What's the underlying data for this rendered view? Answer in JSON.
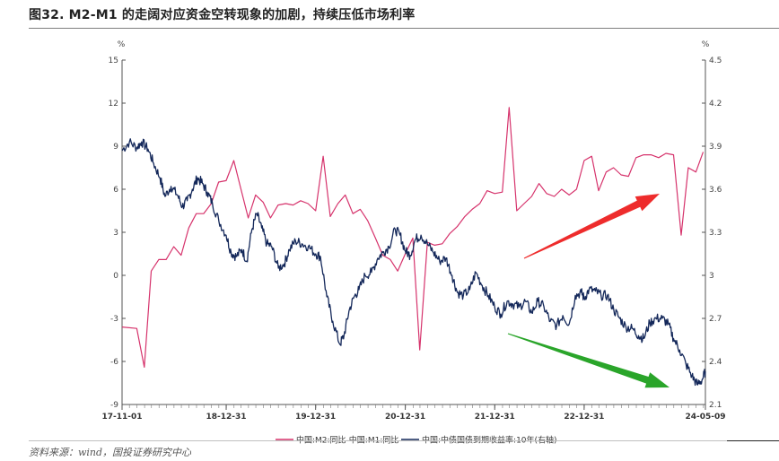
{
  "title": "图32. M2-M1 的走阔对应资金空转现象的加剧，持续压低市场利率",
  "source": "资料来源：wind，国投证券研究中心",
  "chart_data": {
    "type": "line",
    "left_unit": "%",
    "right_unit": "%",
    "left_ticks": [
      "15",
      "12",
      "9",
      "6",
      "3",
      "0",
      "-3",
      "-6",
      "-9"
    ],
    "right_ticks": [
      "4.5",
      "4.2",
      "3.9",
      "3.6",
      "3.3",
      "3",
      "2.7",
      "2.4",
      "2.1"
    ],
    "x_ticks": [
      "17-11-01",
      "18-12-31",
      "19-12-31",
      "20-12-31",
      "21-12-31",
      "22-12-31",
      "24-05-09"
    ],
    "xlim": [
      "2017-11-01",
      "2024-05-09"
    ],
    "ylim_left": [
      -9,
      15
    ],
    "ylim_right": [
      2.1,
      4.5
    ],
    "grid": false,
    "legend_position": "bottom",
    "arrow_colors": [
      "#ee2c2c",
      "#2aa52a"
    ],
    "series": [
      {
        "name": "中国:M2:同比-中国:M1:同比",
        "axis": "left",
        "color": "#d6336c",
        "points": [
          [
            "2017-11-01",
            -3.6
          ],
          [
            "2017-12-31",
            -3.7
          ],
          [
            "2018-01-31",
            -6.4
          ],
          [
            "2018-02-28",
            0.3
          ],
          [
            "2018-03-31",
            1.1
          ],
          [
            "2018-04-30",
            1.1
          ],
          [
            "2018-05-31",
            2.0
          ],
          [
            "2018-06-30",
            1.4
          ],
          [
            "2018-07-31",
            3.3
          ],
          [
            "2018-08-31",
            4.3
          ],
          [
            "2018-09-30",
            4.3
          ],
          [
            "2018-10-31",
            5.0
          ],
          [
            "2018-11-30",
            6.5
          ],
          [
            "2018-12-31",
            6.6
          ],
          [
            "2019-01-31",
            8.0
          ],
          [
            "2019-02-28",
            6.1
          ],
          [
            "2019-03-31",
            4.0
          ],
          [
            "2019-04-30",
            5.6
          ],
          [
            "2019-05-31",
            5.1
          ],
          [
            "2019-06-30",
            4.0
          ],
          [
            "2019-07-31",
            4.9
          ],
          [
            "2019-08-31",
            5.0
          ],
          [
            "2019-09-30",
            4.9
          ],
          [
            "2019-10-31",
            5.2
          ],
          [
            "2019-11-30",
            5.0
          ],
          [
            "2019-12-31",
            4.5
          ],
          [
            "2020-01-31",
            8.3
          ],
          [
            "2020-02-29",
            4.1
          ],
          [
            "2020-03-31",
            5.0
          ],
          [
            "2020-04-30",
            5.6
          ],
          [
            "2020-05-31",
            4.3
          ],
          [
            "2020-06-30",
            4.6
          ],
          [
            "2020-07-31",
            3.8
          ],
          [
            "2020-08-31",
            2.6
          ],
          [
            "2020-09-30",
            1.4
          ],
          [
            "2020-10-31",
            1.1
          ],
          [
            "2020-11-30",
            0.3
          ],
          [
            "2020-12-31",
            1.5
          ],
          [
            "2021-01-31",
            2.6
          ],
          [
            "2021-02-28",
            -5.2
          ],
          [
            "2021-03-31",
            2.3
          ],
          [
            "2021-04-30",
            2.1
          ],
          [
            "2021-05-31",
            2.2
          ],
          [
            "2021-06-30",
            2.9
          ],
          [
            "2021-07-31",
            3.4
          ],
          [
            "2021-08-31",
            4.1
          ],
          [
            "2021-09-30",
            4.6
          ],
          [
            "2021-10-31",
            5.0
          ],
          [
            "2021-11-30",
            5.9
          ],
          [
            "2021-12-31",
            5.7
          ],
          [
            "2022-01-31",
            5.8
          ],
          [
            "2022-02-28",
            11.7
          ],
          [
            "2022-03-31",
            4.5
          ],
          [
            "2022-04-30",
            5.0
          ],
          [
            "2022-05-31",
            5.5
          ],
          [
            "2022-06-30",
            6.4
          ],
          [
            "2022-07-31",
            5.7
          ],
          [
            "2022-08-31",
            5.5
          ],
          [
            "2022-09-30",
            6.0
          ],
          [
            "2022-10-31",
            5.6
          ],
          [
            "2022-11-30",
            6.0
          ],
          [
            "2022-12-31",
            8.0
          ],
          [
            "2023-01-31",
            8.3
          ],
          [
            "2023-02-28",
            5.9
          ],
          [
            "2023-03-31",
            7.2
          ],
          [
            "2023-04-30",
            7.5
          ],
          [
            "2023-05-31",
            7.0
          ],
          [
            "2023-06-30",
            6.9
          ],
          [
            "2023-07-31",
            8.2
          ],
          [
            "2023-08-31",
            8.4
          ],
          [
            "2023-09-30",
            8.4
          ],
          [
            "2023-10-31",
            8.2
          ],
          [
            "2023-11-30",
            8.5
          ],
          [
            "2023-12-31",
            8.4
          ],
          [
            "2024-01-31",
            2.8
          ],
          [
            "2024-02-29",
            7.5
          ],
          [
            "2024-03-31",
            7.2
          ],
          [
            "2024-04-30",
            8.6
          ]
        ]
      },
      {
        "name": "中国:中债国债到期收益率:10年(右轴)",
        "axis": "right",
        "color": "#14285a",
        "points": [
          [
            "2017-11-01",
            3.87
          ],
          [
            "2017-12-01",
            3.93
          ],
          [
            "2017-12-31",
            3.89
          ],
          [
            "2018-01-20",
            3.93
          ],
          [
            "2018-02-15",
            3.88
          ],
          [
            "2018-03-10",
            3.78
          ],
          [
            "2018-04-05",
            3.68
          ],
          [
            "2018-04-25",
            3.55
          ],
          [
            "2018-05-20",
            3.62
          ],
          [
            "2018-06-15",
            3.56
          ],
          [
            "2018-07-05",
            3.48
          ],
          [
            "2018-07-25",
            3.52
          ],
          [
            "2018-08-15",
            3.6
          ],
          [
            "2018-09-05",
            3.68
          ],
          [
            "2018-09-25",
            3.64
          ],
          [
            "2018-10-15",
            3.58
          ],
          [
            "2018-11-05",
            3.5
          ],
          [
            "2018-12-01",
            3.38
          ],
          [
            "2018-12-31",
            3.28
          ],
          [
            "2019-01-20",
            3.16
          ],
          [
            "2019-02-10",
            3.13
          ],
          [
            "2019-03-05",
            3.18
          ],
          [
            "2019-03-25",
            3.1
          ],
          [
            "2019-04-15",
            3.32
          ],
          [
            "2019-05-05",
            3.43
          ],
          [
            "2019-05-25",
            3.33
          ],
          [
            "2019-06-15",
            3.22
          ],
          [
            "2019-07-05",
            3.2
          ],
          [
            "2019-08-01",
            3.05
          ],
          [
            "2019-08-25",
            3.08
          ],
          [
            "2019-09-15",
            3.18
          ],
          [
            "2019-10-10",
            3.24
          ],
          [
            "2019-11-05",
            3.22
          ],
          [
            "2019-12-01",
            3.2
          ],
          [
            "2019-12-31",
            3.15
          ],
          [
            "2020-01-20",
            3.13
          ],
          [
            "2020-02-15",
            2.85
          ],
          [
            "2020-03-10",
            2.68
          ],
          [
            "2020-04-08",
            2.52
          ],
          [
            "2020-04-25",
            2.58
          ],
          [
            "2020-05-15",
            2.75
          ],
          [
            "2020-06-05",
            2.85
          ],
          [
            "2020-06-25",
            2.9
          ],
          [
            "2020-07-20",
            3.0
          ],
          [
            "2020-08-15",
            3.02
          ],
          [
            "2020-09-10",
            3.12
          ],
          [
            "2020-10-01",
            3.16
          ],
          [
            "2020-10-25",
            3.2
          ],
          [
            "2020-11-20",
            3.32
          ],
          [
            "2020-12-10",
            3.28
          ],
          [
            "2020-12-31",
            3.17
          ],
          [
            "2021-01-20",
            3.14
          ],
          [
            "2021-02-10",
            3.25
          ],
          [
            "2021-03-05",
            3.28
          ],
          [
            "2021-03-31",
            3.22
          ],
          [
            "2021-04-25",
            3.16
          ],
          [
            "2021-05-20",
            3.1
          ],
          [
            "2021-06-15",
            3.12
          ],
          [
            "2021-07-10",
            3.0
          ],
          [
            "2021-08-01",
            2.88
          ],
          [
            "2021-08-25",
            2.86
          ],
          [
            "2021-09-20",
            2.9
          ],
          [
            "2021-10-15",
            3.02
          ],
          [
            "2021-11-10",
            2.93
          ],
          [
            "2021-12-05",
            2.86
          ],
          [
            "2021-12-31",
            2.78
          ],
          [
            "2022-01-25",
            2.73
          ],
          [
            "2022-02-20",
            2.82
          ],
          [
            "2022-03-15",
            2.8
          ],
          [
            "2022-04-10",
            2.78
          ],
          [
            "2022-05-05",
            2.82
          ],
          [
            "2022-05-31",
            2.74
          ],
          [
            "2022-06-25",
            2.82
          ],
          [
            "2022-07-20",
            2.78
          ],
          [
            "2022-08-15",
            2.68
          ],
          [
            "2022-09-10",
            2.65
          ],
          [
            "2022-10-05",
            2.72
          ],
          [
            "2022-10-31",
            2.66
          ],
          [
            "2022-11-25",
            2.86
          ],
          [
            "2022-12-20",
            2.88
          ],
          [
            "2022-12-31",
            2.84
          ],
          [
            "2023-01-20",
            2.9
          ],
          [
            "2023-02-15",
            2.89
          ],
          [
            "2023-03-10",
            2.86
          ],
          [
            "2023-04-05",
            2.86
          ],
          [
            "2023-05-01",
            2.76
          ],
          [
            "2023-05-25",
            2.7
          ],
          [
            "2023-06-20",
            2.64
          ],
          [
            "2023-07-15",
            2.63
          ],
          [
            "2023-08-10",
            2.58
          ],
          [
            "2023-08-31",
            2.56
          ],
          [
            "2023-09-25",
            2.67
          ],
          [
            "2023-10-20",
            2.7
          ],
          [
            "2023-11-15",
            2.7
          ],
          [
            "2023-12-10",
            2.66
          ],
          [
            "2023-12-31",
            2.56
          ],
          [
            "2024-01-25",
            2.48
          ],
          [
            "2024-02-20",
            2.38
          ],
          [
            "2024-03-15",
            2.3
          ],
          [
            "2024-04-05",
            2.24
          ],
          [
            "2024-04-25",
            2.27
          ],
          [
            "2024-05-09",
            2.33
          ]
        ]
      }
    ]
  }
}
